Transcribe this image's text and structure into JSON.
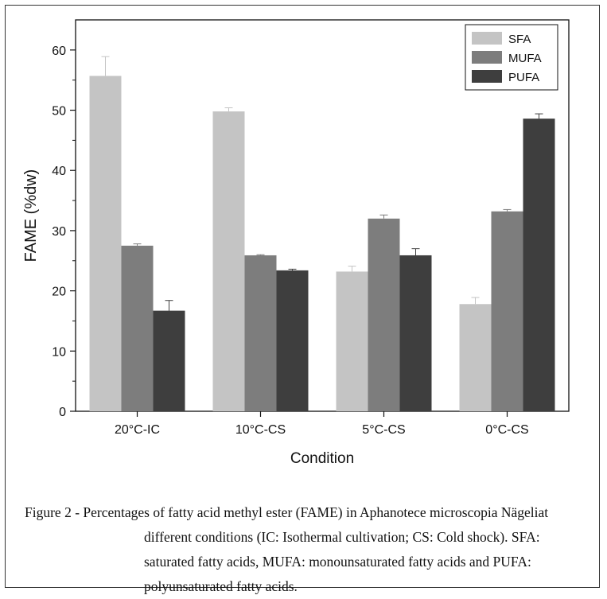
{
  "chart_data": {
    "type": "bar",
    "categories": [
      "20°C-IC",
      "10°C-CS",
      "5°C-CS",
      "0°C-CS"
    ],
    "series": [
      {
        "name": "SFA",
        "values": [
          55.7,
          49.8,
          23.2,
          17.8
        ],
        "errors": [
          3.2,
          0.6,
          0.9,
          1.1
        ],
        "color": "#c4c4c4"
      },
      {
        "name": "MUFA",
        "values": [
          27.5,
          25.9,
          32.0,
          33.2
        ],
        "errors": [
          0.3,
          0.1,
          0.6,
          0.3
        ],
        "color": "#7d7d7d"
      },
      {
        "name": "PUFA",
        "values": [
          16.7,
          23.4,
          25.9,
          48.6
        ],
        "errors": [
          1.7,
          0.2,
          1.1,
          0.8
        ],
        "color": "#3e3e3e"
      }
    ],
    "xlabel": "Condition",
    "ylabel": "FAME (%dw)",
    "ylim": [
      0,
      65
    ],
    "yticks": [
      0,
      10,
      20,
      30,
      40,
      50,
      60
    ],
    "legend_position": "top-right",
    "grid": false
  },
  "caption": {
    "label": "Figure 2 - ",
    "text": "Percentages of fatty acid methyl ester (FAME) in Aphanotece microscopia Nägeliat different conditions (IC: Isothermal cultivation; CS: Cold shock). SFA: saturated fatty acids, MUFA: monounsaturated fatty acids and PUFA: polyunsaturated fatty acids."
  }
}
